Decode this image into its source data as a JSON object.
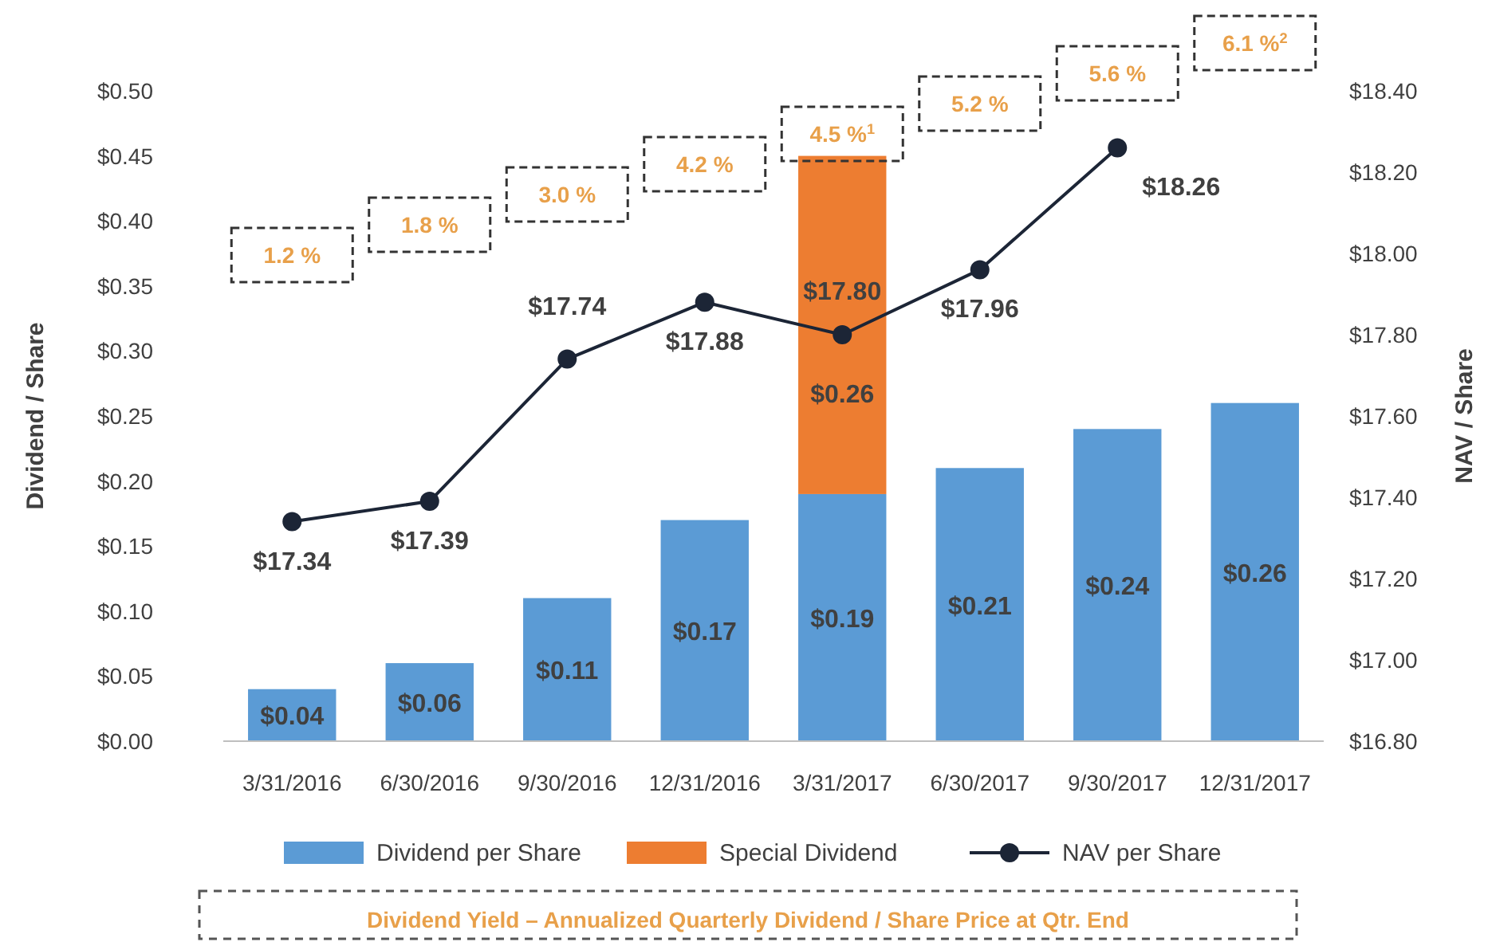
{
  "chart_data": {
    "type": "bar",
    "stacked": true,
    "ylabel": "Dividend / Share",
    "y2label": "NAV / Share",
    "categories": [
      "3/31/2016",
      "6/30/2016",
      "9/30/2016",
      "12/31/2016",
      "3/31/2017",
      "6/30/2017",
      "9/30/2017",
      "12/31/2017"
    ],
    "series": [
      {
        "name": "Dividend per Share",
        "color": "#5b9bd5",
        "values": [
          0.04,
          0.06,
          0.11,
          0.17,
          0.19,
          0.21,
          0.24,
          0.26
        ],
        "value_labels": [
          "$0.04",
          "$0.06",
          "$0.11",
          "$0.17",
          "$0.19",
          "$0.21",
          "$0.24",
          "$0.26"
        ]
      },
      {
        "name": "Special Dividend",
        "color": "#ed7d31",
        "values": [
          null,
          null,
          null,
          null,
          0.26,
          null,
          null,
          null
        ],
        "value_labels": [
          null,
          null,
          null,
          null,
          "$0.26",
          null,
          null,
          null
        ]
      },
      {
        "type": "line",
        "axis": "y2",
        "name": "NAV per Share",
        "color": "#1c2536",
        "marker": "circle",
        "line_style": "solid",
        "values": [
          17.34,
          17.39,
          17.74,
          17.88,
          17.8,
          17.96,
          18.26,
          null
        ],
        "value_labels": [
          "$17.34",
          "$17.39",
          "$17.74",
          "$17.88",
          "$17.80",
          "$17.96",
          "$18.26",
          null
        ]
      }
    ],
    "ylim": [
      0,
      0.5
    ],
    "yticks": [
      {
        "value": 0,
        "label": "$0.00"
      },
      {
        "value": 0.05,
        "label": "$0.05"
      },
      {
        "value": 0.1,
        "label": "$0.10"
      },
      {
        "value": 0.15,
        "label": "$0.15"
      },
      {
        "value": 0.2,
        "label": "$0.20"
      },
      {
        "value": 0.25,
        "label": "$0.25"
      },
      {
        "value": 0.3,
        "label": "$0.30"
      },
      {
        "value": 0.35,
        "label": "$0.35"
      },
      {
        "value": 0.4,
        "label": "$0.40"
      },
      {
        "value": 0.45,
        "label": "$0.45"
      },
      {
        "value": 0.5,
        "label": "$0.50"
      }
    ],
    "y2lim": [
      16.8,
      18.4
    ],
    "y2ticks": [
      {
        "value": 16.8,
        "label": "$16.80"
      },
      {
        "value": 17.0,
        "label": "$17.00"
      },
      {
        "value": 17.2,
        "label": "$17.20"
      },
      {
        "value": 17.4,
        "label": "$17.40"
      },
      {
        "value": 17.6,
        "label": "$17.60"
      },
      {
        "value": 17.8,
        "label": "$17.80"
      },
      {
        "value": 18.0,
        "label": "$18.00"
      },
      {
        "value": 18.2,
        "label": "$18.20"
      },
      {
        "value": 18.4,
        "label": "$18.40"
      }
    ],
    "grid": false,
    "legend": "bottom",
    "annotations": [
      "1.2 %",
      "1.8 %",
      "3.0 %",
      "4.2 %",
      "4.5 %$^{1}$",
      "5.2 %",
      "5.6 %",
      "6.1 %$^{2}$",
      "Dividend Yield – Annualized Quarterly Dividend / Share Price at Qtr. End"
    ]
  }
}
